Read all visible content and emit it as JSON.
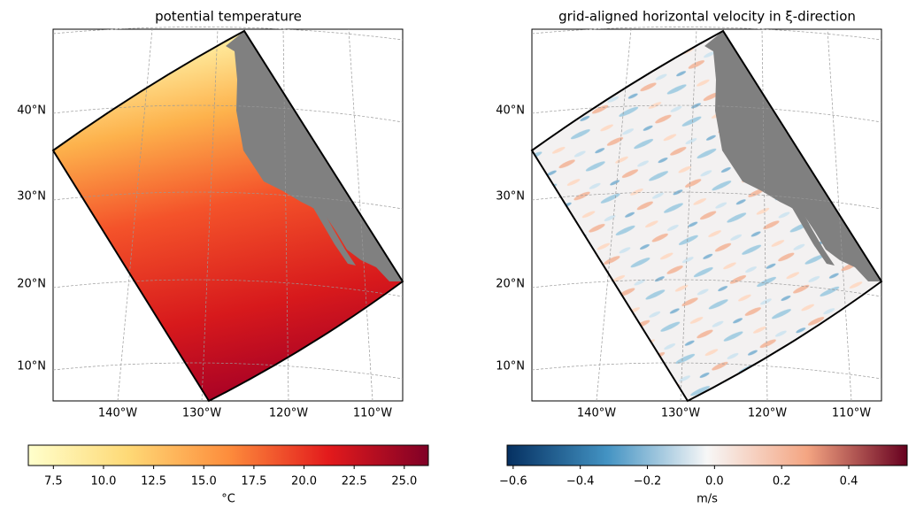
{
  "panels": [
    {
      "title": "potential temperature",
      "lat_labels": [
        "40°N",
        "30°N",
        "20°N",
        "10°N"
      ],
      "lon_labels": [
        "140°W",
        "130°W",
        "120°W",
        "110°W"
      ],
      "colorbar": {
        "label": "°C",
        "range": [
          6.25,
          26.2
        ],
        "colors": [
          "#ffffcc",
          "#fed976",
          "#fd8d3c",
          "#e31a1c",
          "#800026"
        ],
        "ticks": [
          {
            "value": 7.5,
            "label": "7.5"
          },
          {
            "value": 10,
            "label": "10.0"
          },
          {
            "value": 12.5,
            "label": "12.5"
          },
          {
            "value": 15,
            "label": "15.0"
          },
          {
            "value": 17.5,
            "label": "17.5"
          },
          {
            "value": 20,
            "label": "20.0"
          },
          {
            "value": 22.5,
            "label": "22.5"
          },
          {
            "value": 25,
            "label": "25.0"
          }
        ]
      }
    },
    {
      "title": "grid-aligned horizontal velocity in ξ-direction",
      "lat_labels": [
        "40°N",
        "30°N",
        "20°N",
        "10°N"
      ],
      "lon_labels": [
        "140°W",
        "130°W",
        "120°W",
        "110°W"
      ],
      "colorbar": {
        "label": "m/s",
        "range": [
          -0.618,
          0.574
        ],
        "colors": [
          "#053061",
          "#4393c3",
          "#f7f7f7",
          "#f4a582",
          "#67001f"
        ],
        "ticks": [
          {
            "value": -0.6,
            "label": "−0.6"
          },
          {
            "value": -0.4,
            "label": "−0.4"
          },
          {
            "value": -0.2,
            "label": "−0.2"
          },
          {
            "value": 0,
            "label": "0.0"
          },
          {
            "value": 0.2,
            "label": "0.2"
          },
          {
            "value": 0.4,
            "label": "0.4"
          }
        ]
      }
    }
  ]
}
